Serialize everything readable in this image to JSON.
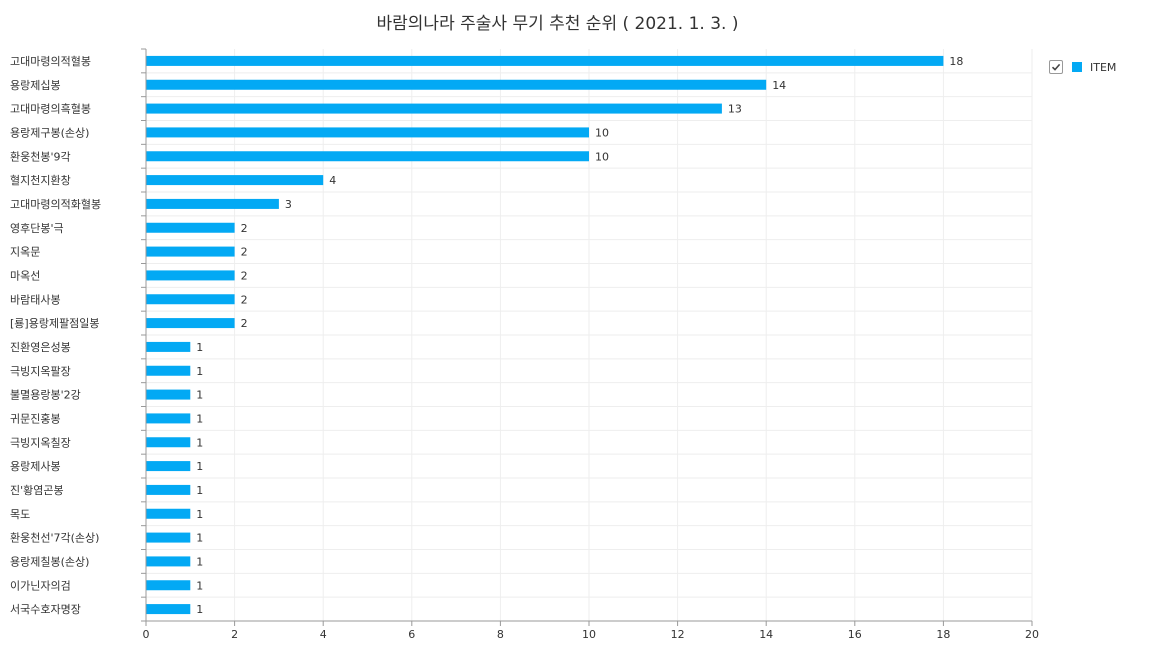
{
  "chart_data": {
    "type": "bar",
    "orientation": "horizontal",
    "title": "바람의나라 주술사 무기 추천 순위 ( 2021. 1. 3. )",
    "categories": [
      "고대마령의적혈봉",
      "용랑제십봉",
      "고대마령의흑혈봉",
      "용랑제구봉(손상)",
      "환웅천봉'9각",
      "혈지천지환창",
      "고대마령의적화혈봉",
      "영후단봉'극",
      "지옥문",
      "마옥선",
      "바람태사봉",
      "[룡]용랑제팔점일봉",
      "진환영은성봉",
      "극빙지옥팔장",
      "불멸용랑봉'2강",
      "귀문진홍봉",
      "극빙지옥칠장",
      "용랑제사봉",
      "진'황염곤봉",
      "목도",
      "환웅천선'7각(손상)",
      "용랑제칠봉(손상)",
      "이가닌자의검",
      "서국수호자명장"
    ],
    "series": [
      {
        "name": "ITEM",
        "values": [
          18,
          14,
          13,
          10,
          10,
          4,
          3,
          2,
          2,
          2,
          2,
          2,
          1,
          1,
          1,
          1,
          1,
          1,
          1,
          1,
          1,
          1,
          1,
          1
        ]
      }
    ],
    "xlim": [
      0,
      20
    ],
    "xticks": [
      0,
      2,
      4,
      6,
      8,
      10,
      12,
      14,
      16,
      18,
      20
    ],
    "grid": true,
    "legend_position": "top-right",
    "colors": {
      "bar": "#03a9f4",
      "grid": "#eeeeee",
      "axis": "#999999"
    }
  },
  "legend": {
    "checked": true
  }
}
